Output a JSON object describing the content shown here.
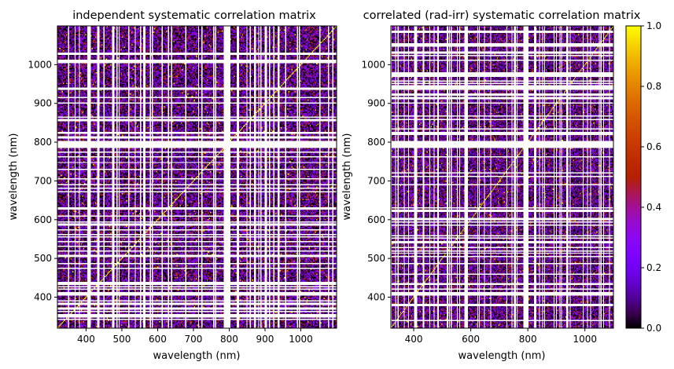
{
  "chart_data": [
    {
      "type": "heatmap",
      "title": "independent systematic correlation matrix",
      "xlabel": "wavelength (nm)",
      "ylabel": "wavelength (nm)",
      "xlim": [
        320,
        1100
      ],
      "ylim": [
        320,
        1100
      ],
      "xticks": [
        400,
        500,
        600,
        700,
        800,
        900,
        1000
      ],
      "yticks": [
        400,
        500,
        600,
        700,
        800,
        900,
        1000
      ],
      "white_bands": [
        [
          380,
          383
        ],
        [
          405,
          412
        ],
        [
          431,
          436
        ],
        [
          485,
          489
        ],
        [
          517,
          520
        ],
        [
          585,
          588
        ],
        [
          628,
          631
        ],
        [
          760,
          764
        ],
        [
          786,
          804
        ],
        [
          820,
          826
        ],
        [
          856,
          860
        ],
        [
          898,
          902
        ],
        [
          935,
          940
        ]
      ],
      "value_range": [
        0.0,
        1.0
      ]
    },
    {
      "type": "heatmap",
      "title": "correlated (rad-irr) systematic correlation matrix",
      "xlabel": "wavelength (nm)",
      "ylabel": "wavelength (nm)",
      "xlim": [
        320,
        1100
      ],
      "ylim": [
        320,
        1100
      ],
      "xticks": [
        400,
        600,
        800,
        1000
      ],
      "yticks": [
        400,
        500,
        600,
        700,
        800,
        900,
        1000
      ],
      "white_bands": [
        [
          380,
          383
        ],
        [
          405,
          412
        ],
        [
          431,
          436
        ],
        [
          485,
          489
        ],
        [
          517,
          520
        ],
        [
          585,
          588
        ],
        [
          628,
          631
        ],
        [
          760,
          764
        ],
        [
          786,
          804
        ],
        [
          820,
          826
        ],
        [
          856,
          860
        ],
        [
          898,
          902
        ],
        [
          935,
          940
        ]
      ],
      "value_range": [
        0.0,
        1.0
      ]
    }
  ],
  "colorbar": {
    "colormap": "gnuplot",
    "min": 0.0,
    "max": 1.0,
    "ticks": [
      "0.0",
      "0.2",
      "0.4",
      "0.6",
      "0.8",
      "1.0"
    ],
    "colors": [
      "#000000",
      "#5a00a4",
      "#8a00ff",
      "#c00000",
      "#ff6400",
      "#ffff00"
    ]
  }
}
